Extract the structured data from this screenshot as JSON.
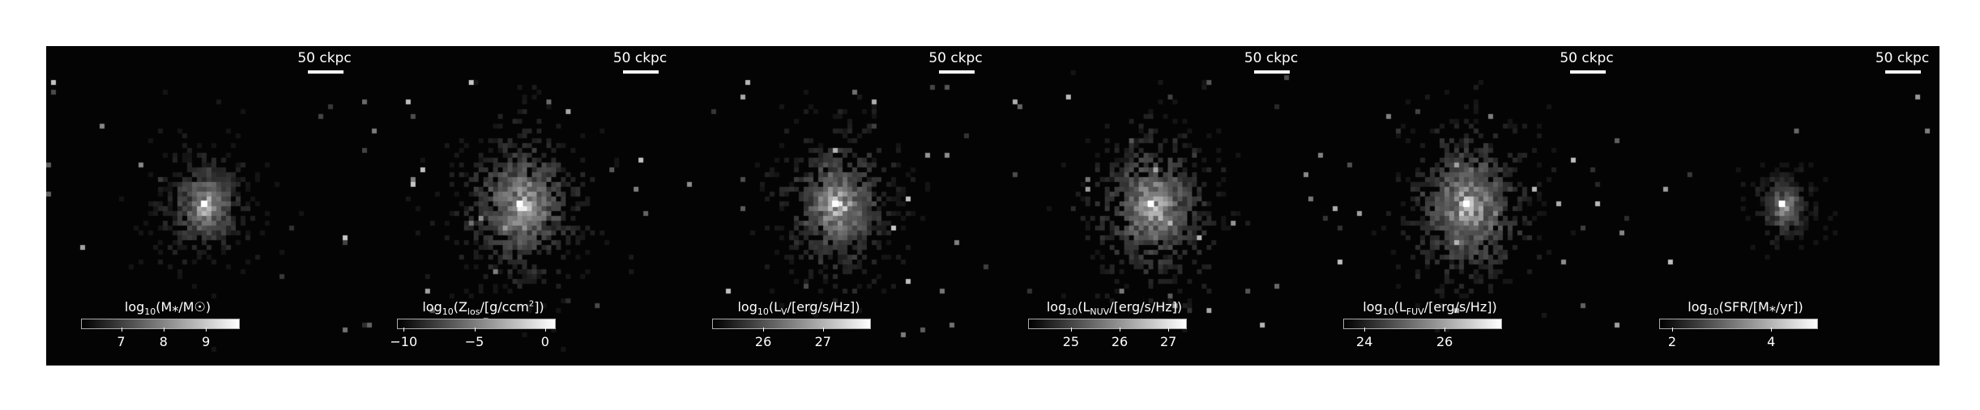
{
  "scale_label": "50 ckpc",
  "panels": [
    {
      "id": "stellar-mass",
      "title_pre": "log",
      "title_sub": "10",
      "title_body": "(M⁎/M☉)",
      "title_sup": "",
      "title_post": "",
      "ticks": [
        {
          "label": "7",
          "frac": 0.25
        },
        {
          "label": "8",
          "frac": 0.52
        },
        {
          "label": "9",
          "frac": 0.79
        }
      ],
      "spread": 0.42,
      "core": 1.0,
      "seed": 11
    },
    {
      "id": "metal-surface-density",
      "title_pre": "log",
      "title_sub": "10",
      "title_body": "(Z",
      "title_sub2": "los",
      "title_mid": "/[g/ccm",
      "title_sup": "2",
      "title_post": "])",
      "ticks": [
        {
          "label": "−10",
          "frac": 0.04
        },
        {
          "label": "−5",
          "frac": 0.49
        },
        {
          "label": "0",
          "frac": 0.94
        }
      ],
      "spread": 0.75,
      "core": 1.0,
      "seed": 23
    },
    {
      "id": "luminosity-v",
      "title_pre": "log",
      "title_sub": "10",
      "title_body": "(L",
      "title_sub2": "V",
      "title_mid": "/[erg/s/Hz])",
      "title_sup": "",
      "title_post": "",
      "ticks": [
        {
          "label": "26",
          "frac": 0.32
        },
        {
          "label": "27",
          "frac": 0.7
        }
      ],
      "spread": 0.7,
      "core": 1.0,
      "seed": 37
    },
    {
      "id": "luminosity-nuv",
      "title_pre": "log",
      "title_sub": "10",
      "title_body": "(L",
      "title_sub2": "NUV",
      "title_mid": "/[erg/s/Hz])",
      "title_sup": "",
      "title_post": "",
      "ticks": [
        {
          "label": "25",
          "frac": 0.27
        },
        {
          "label": "26",
          "frac": 0.58
        },
        {
          "label": "27",
          "frac": 0.89
        }
      ],
      "spread": 0.75,
      "core": 1.0,
      "seed": 41
    },
    {
      "id": "luminosity-fuv",
      "title_pre": "log",
      "title_sub": "10",
      "title_body": "(L",
      "title_sub2": "FUV",
      "title_mid": "/[erg/s/Hz])",
      "title_sup": "",
      "title_post": "",
      "ticks": [
        {
          "label": "24",
          "frac": 0.13
        },
        {
          "label": "26",
          "frac": 0.64
        }
      ],
      "spread": 0.8,
      "core": 1.0,
      "seed": 53
    },
    {
      "id": "star-formation-rate",
      "title_pre": "log",
      "title_sub": "10",
      "title_body": "(SFR/[M⁎/yr])",
      "title_sup": "",
      "title_post": "",
      "ticks": [
        {
          "label": "2",
          "frac": 0.08
        },
        {
          "label": "4",
          "frac": 0.71
        }
      ],
      "spread": 0.18,
      "core": 1.0,
      "seed": 67
    }
  ]
}
